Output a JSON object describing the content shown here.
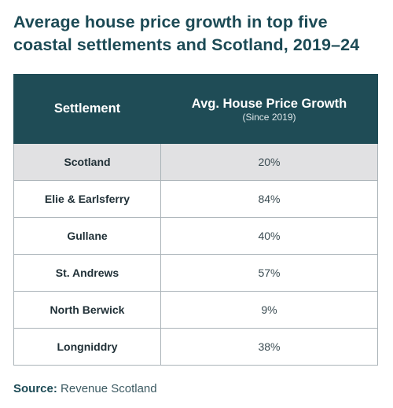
{
  "chart_data": {
    "type": "table",
    "title": "Average house price growth in top five coastal settlements and Scotland, 2019–24",
    "columns": [
      {
        "label": "Settlement",
        "sublabel": ""
      },
      {
        "label": "Avg. House Price Growth",
        "sublabel": "(Since 2019)"
      }
    ],
    "rows": [
      {
        "settlement": "Scotland",
        "growth": "20%",
        "growth_pct": 20,
        "highlight": true
      },
      {
        "settlement": "Elie & Earlsferry",
        "growth": "84%",
        "growth_pct": 84,
        "highlight": false
      },
      {
        "settlement": "Gullane",
        "growth": "40%",
        "growth_pct": 40,
        "highlight": false
      },
      {
        "settlement": "St. Andrews",
        "growth": "57%",
        "growth_pct": 57,
        "highlight": false
      },
      {
        "settlement": "North Berwick",
        "growth": "9%",
        "growth_pct": 9,
        "highlight": false
      },
      {
        "settlement": "Longniddry",
        "growth": "38%",
        "growth_pct": 38,
        "highlight": false
      }
    ],
    "source_label": "Source:",
    "source_text": "Revenue Scotland",
    "colors": {
      "header_bg": "#1f4c56",
      "highlight_row_bg": "#e1e1e3",
      "title": "#1c4a55"
    }
  }
}
